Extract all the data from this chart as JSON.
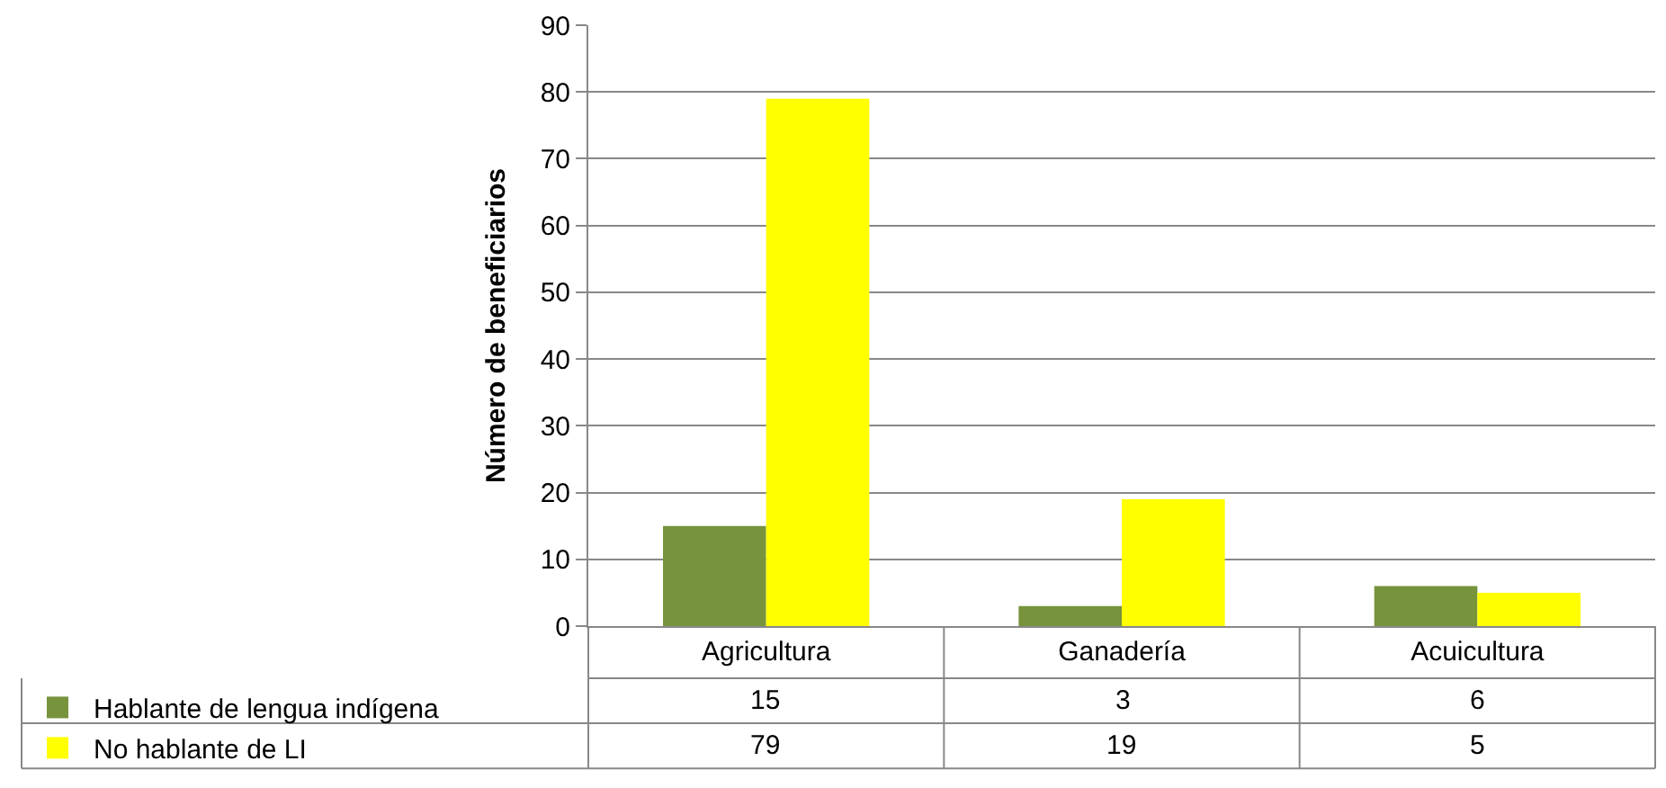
{
  "chart_data": {
    "type": "bar",
    "ylabel": "Número de beneficiarios",
    "categories": [
      "Agricultura",
      "Ganadería",
      "Acuicultura"
    ],
    "series": [
      {
        "name": "Hablante de lengua indígena",
        "color": "#77933c",
        "values": [
          15,
          3,
          6
        ]
      },
      {
        "name": "No hablante de LI",
        "color": "#ffff00",
        "values": [
          79,
          19,
          5
        ]
      }
    ],
    "ylim": [
      0,
      90
    ],
    "yticks": [
      0,
      10,
      20,
      30,
      40,
      50,
      60,
      70,
      80,
      90
    ],
    "grid": "y",
    "legend": "bottom left",
    "data_labels": true
  }
}
